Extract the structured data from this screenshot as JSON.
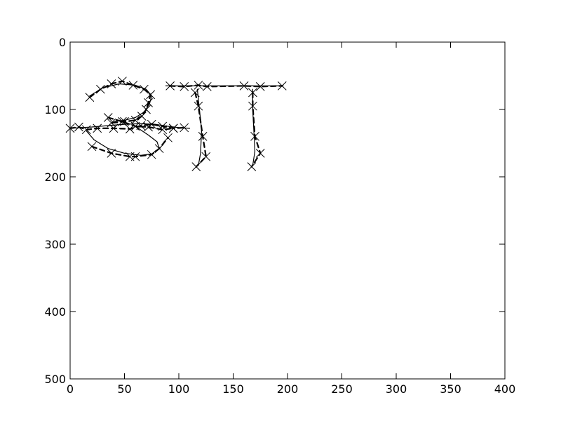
{
  "chart_data": {
    "type": "line",
    "title": "",
    "xlabel": "",
    "ylabel": "",
    "xlim": [
      0,
      400
    ],
    "ylim": [
      500,
      0
    ],
    "y_inverted": true,
    "grid": false,
    "x_ticks": [
      0,
      50,
      100,
      150,
      200,
      250,
      300,
      350,
      400
    ],
    "y_ticks": [
      0,
      100,
      200,
      300,
      400,
      500
    ],
    "x_tick_labels": [
      "0",
      "50",
      "100",
      "150",
      "200",
      "250",
      "300",
      "350",
      "400"
    ],
    "y_tick_labels": [
      "0",
      "100",
      "200",
      "300",
      "400",
      "500"
    ],
    "series": [
      {
        "style": "solid",
        "marker": "none",
        "color": "#000000",
        "strokes": [
          {
            "x": [
              18,
              30,
              45,
              60,
              70,
              75,
              73,
              68,
              60,
              50,
              40
            ],
            "y": [
              80,
              68,
              62,
              64,
              70,
              80,
              92,
              104,
              112,
              116,
              118
            ]
          },
          {
            "x": [
              0,
              10,
              20,
              35,
              50,
              65,
              78,
              90,
              100,
              110
            ],
            "y": [
              128,
              127,
              126,
              124,
              122,
              121,
              122,
              125,
              127,
              128
            ]
          },
          {
            "x": [
              15,
              22,
              35,
              50,
              65,
              75,
              82,
              80,
              72,
              60
            ],
            "y": [
              132,
              145,
              158,
              165,
              168,
              166,
              158,
              148,
              138,
              125
            ]
          },
          {
            "x": [
              88,
              100,
              120,
              140,
              160,
              180,
              196
            ],
            "y": [
              65,
              65,
              65,
              65,
              65,
              65,
              65
            ]
          },
          {
            "x": [
              117,
              119,
              121,
              120,
              118
            ],
            "y": [
              70,
              100,
              130,
              165,
              183
            ]
          },
          {
            "x": [
              168,
              168,
              169,
              170,
              168
            ],
            "y": [
              70,
              100,
              130,
              162,
              183
            ]
          }
        ]
      },
      {
        "style": "dashed",
        "marker": "x",
        "color": "#000000",
        "strokes": [
          {
            "x": [
              18,
              28,
              38,
              48,
              58,
              68,
              74,
              72,
              70,
              66,
              60,
              50,
              38
            ],
            "y": [
              82,
              70,
              62,
              58,
              64,
              70,
              78,
              90,
              100,
              110,
              116,
              118,
              120
            ]
          },
          {
            "x": [
              0,
              8,
              15,
              25,
              40,
              55,
              65,
              75,
              85,
              95,
              105
            ],
            "y": [
              128,
              126,
              130,
              128,
              128,
              129,
              124,
              122,
              125,
              128,
              127
            ]
          },
          {
            "x": [
              35,
              48,
              60,
              72,
              85,
              95
            ],
            "y": [
              112,
              118,
              125,
              126,
              130,
              128
            ]
          },
          {
            "x": [
              20,
              38,
              55,
              60,
              75,
              82,
              90
            ],
            "y": [
              155,
              165,
              170,
              170,
              167,
              158,
              142
            ]
          },
          {
            "x": [
              92,
              105,
              118,
              126,
              160,
              175,
              195
            ],
            "y": [
              65,
              66,
              64,
              66,
              65,
              66,
              65
            ]
          },
          {
            "x": [
              115,
              118,
              122,
              125,
              116
            ],
            "y": [
              75,
              95,
              140,
              170,
              185
            ]
          },
          {
            "x": [
              168,
              168,
              170,
              175,
              167
            ],
            "y": [
              75,
              95,
              140,
              165,
              185
            ]
          }
        ]
      }
    ]
  }
}
